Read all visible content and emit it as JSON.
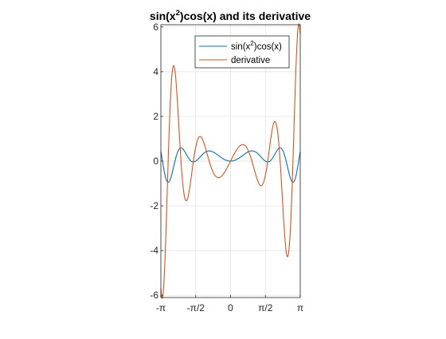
{
  "chart_data": {
    "type": "line",
    "title": "sin(x²)cos(x) and its derivative",
    "title_parts": {
      "pre": "sin(x",
      "sup": "2",
      "post": ")cos(x) and its derivative"
    },
    "xlim": [
      -3.14159,
      3.14159
    ],
    "ylim": [
      -6.1,
      6.1
    ],
    "grid": true,
    "legend_location": "top-right",
    "x_ticks": [
      {
        "value": -3.14159,
        "label": "-π"
      },
      {
        "value": -1.5708,
        "label": "-π/2"
      },
      {
        "value": 0,
        "label": "0"
      },
      {
        "value": 1.5708,
        "label": "π/2"
      },
      {
        "value": 3.14159,
        "label": "π"
      }
    ],
    "y_ticks": [
      {
        "value": -6,
        "label": "-6"
      },
      {
        "value": -4,
        "label": "-4"
      },
      {
        "value": -2,
        "label": "-2"
      },
      {
        "value": 0,
        "label": "0"
      },
      {
        "value": 2,
        "label": "2"
      },
      {
        "value": 4,
        "label": "4"
      },
      {
        "value": 6,
        "label": "6"
      }
    ],
    "series": [
      {
        "name": "sin(x²)cos(x)",
        "legend_parts": {
          "pre": "sin(x",
          "sup": "2",
          "post": ")cos(x)"
        },
        "color": "#0072BD",
        "function": "sin(x^2)*cos(x)"
      },
      {
        "name": "derivative",
        "legend_parts": {
          "pre": "derivative",
          "sup": "",
          "post": ""
        },
        "color": "#D95319",
        "function": "2*x*cos(x^2)*cos(x) - sin(x^2)*sin(x)"
      }
    ],
    "sample_count": 801
  }
}
